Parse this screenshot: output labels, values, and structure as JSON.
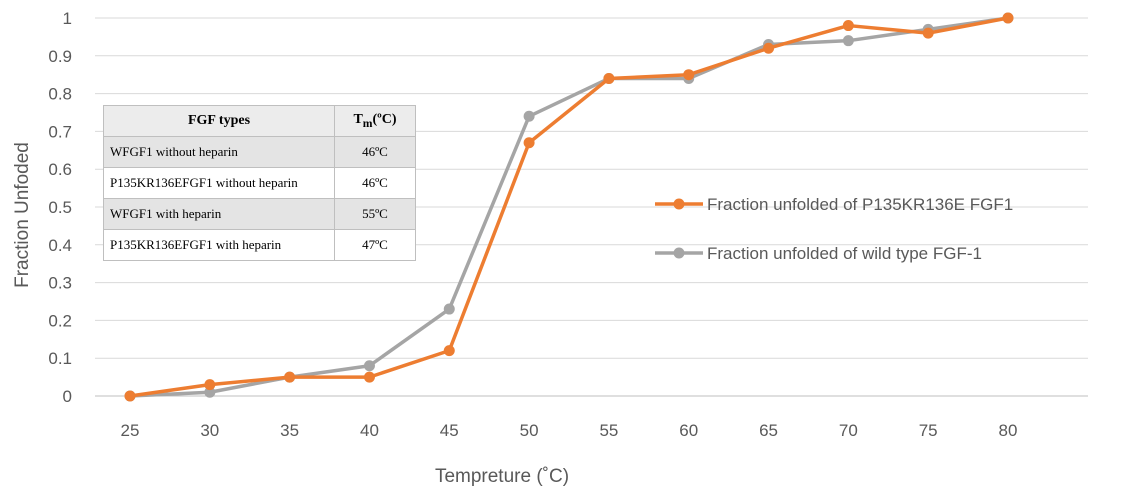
{
  "chart_data": {
    "type": "line",
    "title": "",
    "xlabel": "Tempreture (˚C)",
    "ylabel": "Fraction Unfoded",
    "x": [
      25,
      30,
      35,
      40,
      45,
      50,
      55,
      60,
      65,
      70,
      75,
      80
    ],
    "x_tick_labels": [
      "25",
      "30",
      "35",
      "40",
      "45",
      "50",
      "55",
      "60",
      "65",
      "70",
      "75",
      "80"
    ],
    "y_tick_labels": [
      "0",
      "0.1",
      "0.2",
      "0.3",
      "0.4",
      "0.5",
      "0.6",
      "0.7",
      "0.8",
      "0.9",
      "1"
    ],
    "ylim": [
      0,
      1
    ],
    "grid": true,
    "legend_position": "right",
    "series": [
      {
        "name": "Fraction unfolded of P135KR136E FGF1",
        "color": "#ED7D31",
        "values": [
          0.0,
          0.03,
          0.05,
          0.05,
          0.12,
          0.67,
          0.84,
          0.85,
          0.92,
          0.98,
          0.96,
          1.0
        ]
      },
      {
        "name": "Fraction unfolded of wild type FGF-1",
        "color": "#A5A5A5",
        "values": [
          0.0,
          0.01,
          0.05,
          0.08,
          0.23,
          0.74,
          0.84,
          0.84,
          0.93,
          0.94,
          0.97,
          1.0
        ]
      }
    ]
  },
  "table": {
    "header_col1": "FGF types",
    "header_col2_main": "T",
    "header_col2_sub": "m",
    "header_col2_unit": "(ºC)",
    "rows": [
      {
        "type": "WFGF1 without heparin",
        "tm": "46ºC"
      },
      {
        "type": "P135KR136EFGF1 without heparin",
        "tm": "46ºC"
      },
      {
        "type": "WFGF1 with heparin",
        "tm": "55ºC"
      },
      {
        "type": "P135KR136EFGF1 with heparin",
        "tm": "47ºC"
      }
    ]
  }
}
